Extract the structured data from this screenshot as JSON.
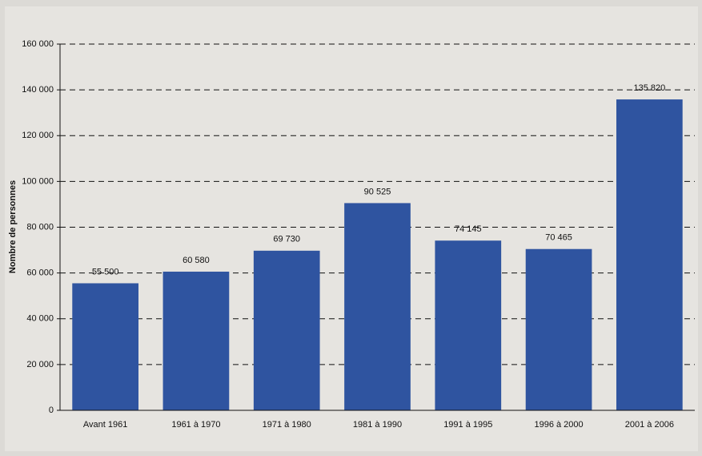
{
  "chart_data": {
    "type": "bar",
    "y_label": "Nombre de personnes",
    "categories": [
      "Avant 1961",
      "1961 à 1970",
      "1971 à 1980",
      "1981 à 1990",
      "1991 à 1995",
      "1996 à 2000",
      "2001 à 2006"
    ],
    "values": [
      55500,
      60580,
      69730,
      90525,
      74145,
      70465,
      135820
    ],
    "value_labels": [
      "55 500",
      "60 580",
      "69 730",
      "90 525",
      "74 145",
      "70 465",
      "135 820"
    ],
    "color": "#2f54a0",
    "ylim": [
      0,
      160000
    ],
    "yticks": [
      0,
      {
        "value": 20000,
        "label": "20 000"
      },
      {
        "value": 40000,
        "label": "40 000"
      },
      {
        "value": 60000,
        "label": "60 000"
      },
      {
        "value": 80000,
        "label": "80 000"
      },
      {
        "value": 100000,
        "label": "100 000"
      },
      {
        "value": 120000,
        "label": "120 000"
      },
      {
        "value": 140000,
        "label": "140 000"
      },
      {
        "value": 160000,
        "label": "160 000"
      }
    ],
    "grid": true
  }
}
